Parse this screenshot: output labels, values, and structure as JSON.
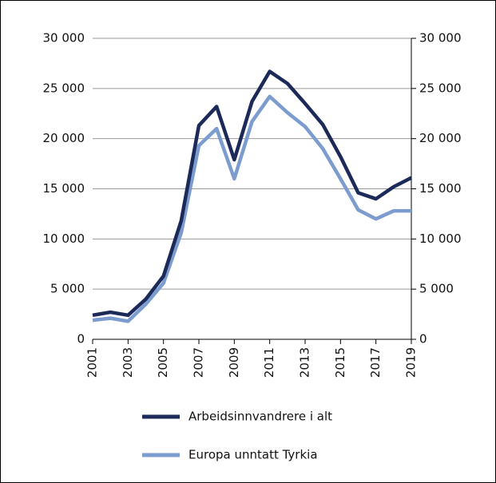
{
  "chart_data": {
    "type": "line",
    "x": [
      2001,
      2002,
      2003,
      2004,
      2005,
      2006,
      2007,
      2008,
      2009,
      2010,
      2011,
      2012,
      2013,
      2014,
      2015,
      2016,
      2017,
      2018,
      2019
    ],
    "xlim": [
      2001,
      2019
    ],
    "xticks": [
      2001,
      2003,
      2005,
      2007,
      2009,
      2011,
      2013,
      2015,
      2017,
      2019
    ],
    "ylim": [
      0,
      30000
    ],
    "yticks": [
      0,
      {
        "value": 5000,
        "label": "5 000"
      },
      {
        "value": 10000,
        "label": "10 000"
      },
      {
        "value": 15000,
        "label": "15 000"
      },
      {
        "value": 20000,
        "label": "20 000"
      },
      {
        "value": 25000,
        "label": "25 000"
      },
      {
        "value": 30000,
        "label": "30 000"
      }
    ],
    "grid": true,
    "series": [
      {
        "name": "Arbeidsinnvandrere i alt",
        "color": "#1c2a5a",
        "values": [
          2400,
          2700,
          2400,
          4000,
          6300,
          11800,
          21300,
          23200,
          17900,
          23700,
          26700,
          25500,
          23500,
          21400,
          18200,
          14600,
          14000,
          15200,
          16100
        ]
      },
      {
        "name": "Europa unntatt Tyrkia",
        "color": "#7c9cd0",
        "values": [
          1900,
          2100,
          1800,
          3500,
          5600,
          10600,
          19300,
          21000,
          16000,
          21700,
          24200,
          22600,
          21200,
          19000,
          16000,
          12900,
          12000,
          12800,
          12800
        ]
      }
    ]
  }
}
